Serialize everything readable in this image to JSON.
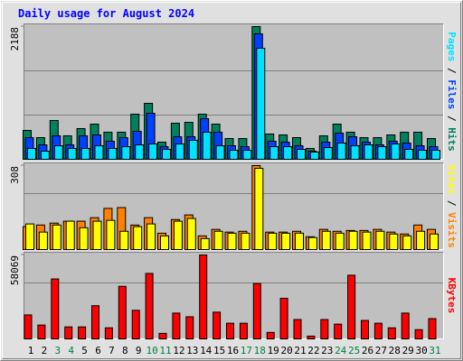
{
  "chart_data": [
    {
      "type": "bar",
      "title": "Daily usage for August 2024",
      "categories": [
        "1",
        "2",
        "3",
        "4",
        "5",
        "6",
        "7",
        "8",
        "9",
        "10",
        "11",
        "12",
        "13",
        "14",
        "15",
        "16",
        "17",
        "18",
        "19",
        "20",
        "21",
        "22",
        "23",
        "24",
        "25",
        "26",
        "27",
        "28",
        "29",
        "30",
        "31"
      ],
      "category_colors": [
        "#000000",
        "#000000",
        "#008040",
        "#008040",
        "#000000",
        "#000000",
        "#000000",
        "#000000",
        "#000000",
        "#008040",
        "#008040",
        "#000000",
        "#000000",
        "#000000",
        "#000000",
        "#000000",
        "#008040",
        "#008040",
        "#000000",
        "#000000",
        "#000000",
        "#000000",
        "#000000",
        "#008040",
        "#008040",
        "#000000",
        "#000000",
        "#000000",
        "#000000",
        "#000000",
        "#008040"
      ],
      "legend_separator": "/",
      "ylim": [
        0,
        2188
      ],
      "yticks": [
        2188
      ],
      "series": [
        {
          "name": "Hits",
          "color": "#00805c",
          "values": [
            476,
            357,
            640,
            387,
            506,
            580,
            447,
            447,
            744,
            923,
            283,
            595,
            610,
            744,
            580,
            342,
            342,
            2188,
            417,
            402,
            357,
            179,
            387,
            580,
            447,
            357,
            357,
            402,
            447,
            447,
            342
          ]
        },
        {
          "name": "Files",
          "color": "#0040ff",
          "values": [
            357,
            238,
            387,
            238,
            387,
            402,
            298,
            357,
            461,
            759,
            208,
            372,
            372,
            670,
            447,
            223,
            208,
            2069,
            298,
            283,
            223,
            134,
            283,
            432,
            372,
            283,
            238,
            298,
            268,
            223,
            208
          ]
        },
        {
          "name": "Pages",
          "color": "#00e0ff",
          "values": [
            179,
            134,
            223,
            179,
            179,
            223,
            179,
            208,
            238,
            253,
            164,
            253,
            313,
            447,
            223,
            149,
            149,
            1831,
            208,
            208,
            164,
            119,
            193,
            268,
            223,
            238,
            208,
            253,
            164,
            149,
            149
          ]
        }
      ]
    },
    {
      "type": "bar",
      "legend_separator": "/",
      "ylim": [
        0,
        308
      ],
      "yticks": [
        308
      ],
      "series": [
        {
          "name": "Visits",
          "color": "#ff8000",
          "values": [
            84,
            90,
            97,
            104,
            104,
            117,
            151,
            154,
            90,
            117,
            60,
            110,
            127,
            50,
            74,
            64,
            67,
            308,
            64,
            64,
            67,
            47,
            74,
            67,
            70,
            70,
            74,
            64,
            57,
            90,
            74
          ]
        },
        {
          "name": "Sites",
          "color": "#ffff00",
          "values": [
            94,
            64,
            90,
            104,
            80,
            104,
            107,
            67,
            84,
            94,
            50,
            104,
            114,
            40,
            67,
            60,
            60,
            298,
            60,
            60,
            60,
            44,
            67,
            60,
            67,
            64,
            67,
            57,
            50,
            67,
            57
          ]
        }
      ]
    },
    {
      "type": "bar",
      "ylim": [
        0,
        58069
      ],
      "yticks": [
        58069
      ],
      "series": [
        {
          "name": "KBytes",
          "color": "#ff0000",
          "values": [
            16591,
            9572,
            41478,
            8296,
            8296,
            22972,
            7657,
            36373,
            19782,
            45306,
            3829,
            17867,
            15315,
            58069,
            18505,
            10848,
            10848,
            38287,
            4467,
            28077,
            13400,
            1914,
            13400,
            10210,
            44030,
            12762,
            10848,
            7657,
            17867,
            6381,
            14039
          ]
        }
      ]
    }
  ]
}
